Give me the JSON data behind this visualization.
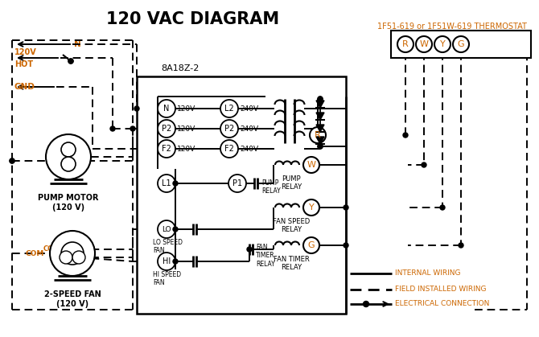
{
  "title": "120 VAC DIAGRAM",
  "title_color": "#000000",
  "title_fontsize": 14,
  "background_color": "#ffffff",
  "thermostat_label": "1F51-619 or 1F51W-619 THERMOSTAT",
  "thermostat_terminals": [
    "R",
    "W",
    "Y",
    "G"
  ],
  "controller_label": "8A18Z-2",
  "left_terminals_labels": [
    "N",
    "P2",
    "F2"
  ],
  "left_terminals_voltages": [
    "120V",
    "120V",
    "120V"
  ],
  "right_terminals_labels": [
    "L2",
    "P2",
    "F2"
  ],
  "right_terminals_voltages": [
    "240V",
    "240V",
    "240V"
  ],
  "pump_motor_label": "PUMP MOTOR\n(120 V)",
  "fan_label": "2-SPEED FAN\n(120 V)",
  "orange_color": "#cc6600",
  "black_color": "#000000"
}
